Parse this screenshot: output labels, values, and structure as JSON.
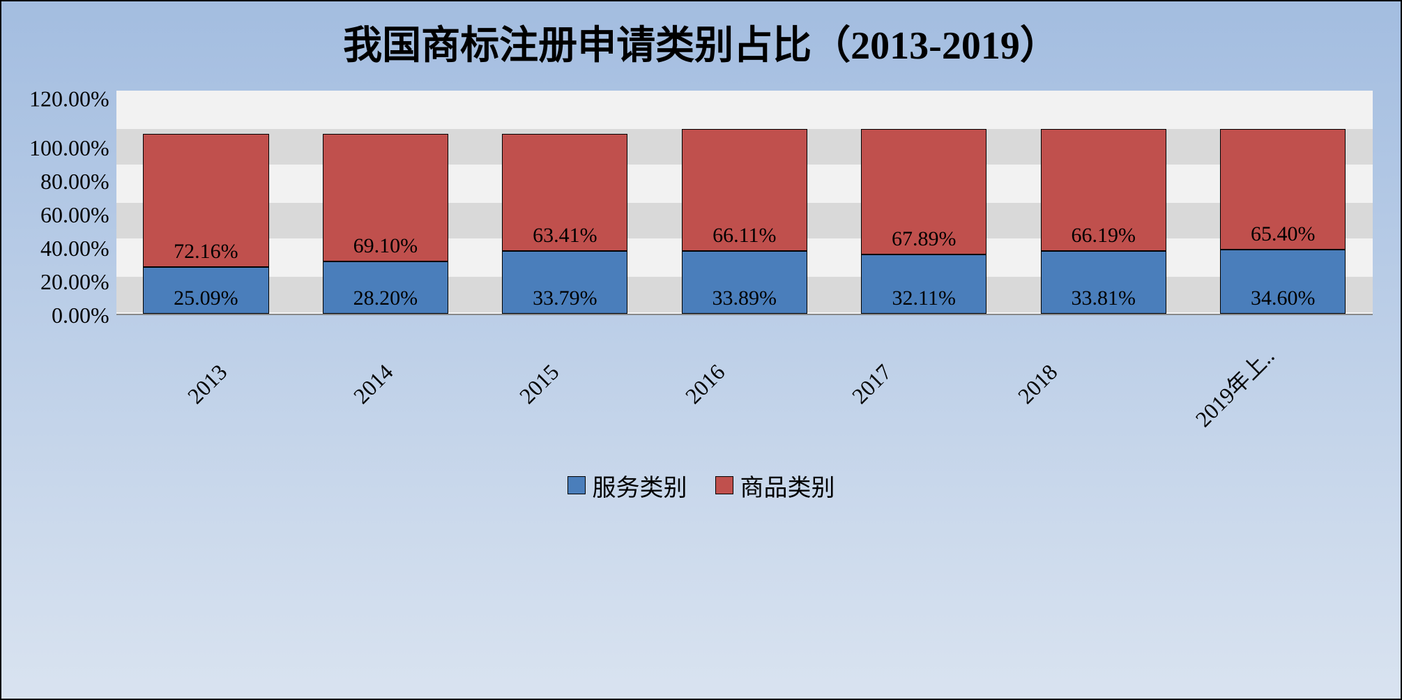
{
  "chart": {
    "type": "stacked-bar",
    "title": "我国商标注册申请类别占比（2013-2019）",
    "title_fontsize": 56,
    "background_gradient": [
      "#a3bde0",
      "#d9e3f0"
    ],
    "plot_background": "#d9d9d9",
    "grid_band_color": "#f2f2f2",
    "border_color": "#000000",
    "categories": [
      "2013",
      "2014",
      "2015",
      "2016",
      "2017",
      "2018",
      "2019年上.."
    ],
    "series": [
      {
        "name": "服务类别",
        "color": "#4a7ebb",
        "values": [
          25.09,
          28.2,
          33.79,
          33.89,
          32.11,
          33.81,
          34.6
        ],
        "labels": [
          "25.09%",
          "28.20%",
          "33.79%",
          "33.89%",
          "32.11%",
          "33.81%",
          "34.60%"
        ]
      },
      {
        "name": "商品类别",
        "color": "#c0504d",
        "values": [
          72.16,
          69.1,
          63.41,
          66.11,
          67.89,
          66.19,
          65.4
        ],
        "labels": [
          "72.16%",
          "69.10%",
          "63.41%",
          "66.11%",
          "67.89%",
          "66.19%",
          "65.40%"
        ]
      }
    ],
    "y_axis": {
      "min": 0,
      "max": 120,
      "step": 20,
      "ticks": [
        "120.00%",
        "100.00%",
        "80.00%",
        "60.00%",
        "40.00%",
        "20.00%",
        "0.00%"
      ],
      "label_fontsize": 32
    },
    "x_axis": {
      "label_fontsize": 32,
      "rotation": -45
    },
    "legend": {
      "position": "bottom",
      "fontsize": 34,
      "items": [
        "服务类别",
        "商品类别"
      ]
    },
    "data_label_fontsize": 30,
    "bar_width_ratio": 0.7
  }
}
